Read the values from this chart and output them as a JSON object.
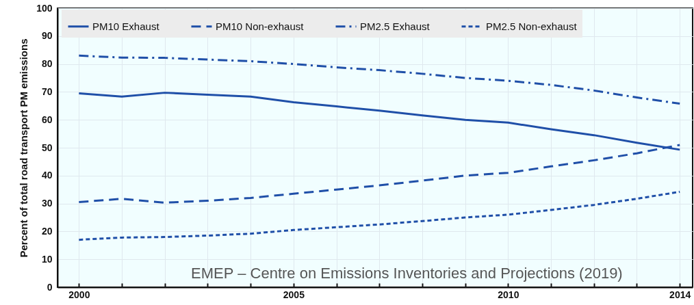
{
  "chart_data": {
    "type": "line",
    "ylabel": "Percent of total road transport PM emissions",
    "x": [
      2000,
      2001,
      2002,
      2003,
      2004,
      2005,
      2006,
      2007,
      2008,
      2009,
      2010,
      2011,
      2012,
      2013,
      2014
    ],
    "series": [
      {
        "name": "PM10 Exhaust",
        "color": "#1f4fa8",
        "line_style": "solid",
        "values": [
          69.5,
          68.3,
          69.7,
          69,
          68.3,
          66.3,
          64.8,
          63.3,
          61.6,
          60,
          59,
          56.6,
          54.5,
          51.8,
          49.3
        ]
      },
      {
        "name": "PM10 Non-exhaust",
        "color": "#1f4fa8",
        "line_style": "dashed",
        "values": [
          30.5,
          31.7,
          30.3,
          31,
          32,
          33.5,
          35,
          36.5,
          38.2,
          40,
          41,
          43.3,
          45.5,
          48,
          51
        ]
      },
      {
        "name": "PM2.5 Exhaust",
        "color": "#1f4fa8",
        "line_style": "dashdot",
        "values": [
          83,
          82.3,
          82.2,
          81.6,
          81,
          80,
          78.8,
          77.8,
          76.5,
          75,
          74,
          72.5,
          70.5,
          68,
          65.8
        ]
      },
      {
        "name": "PM2.5 Non-exhaust",
        "color": "#1f4fa8",
        "line_style": "dotted",
        "values": [
          17,
          17.8,
          18,
          18.5,
          19.2,
          20.5,
          21.5,
          22.5,
          23.7,
          25,
          26,
          27.7,
          29.5,
          31.7,
          34.2
        ]
      }
    ],
    "xlim": [
      1999.5,
      2014.3
    ],
    "xticks": [
      2000,
      {
        "value": 2001,
        "label": null
      },
      {
        "value": 2002,
        "label": null
      },
      {
        "value": 2003,
        "label": null
      },
      {
        "value": 2004,
        "label": null
      },
      2005,
      {
        "value": 2006,
        "label": null
      },
      {
        "value": 2007,
        "label": null
      },
      {
        "value": 2008,
        "label": null
      },
      {
        "value": 2009,
        "label": null
      },
      2010,
      {
        "value": 2011,
        "label": null
      },
      {
        "value": 2012,
        "label": null
      },
      {
        "value": 2013,
        "label": null
      },
      2014
    ],
    "ylim": [
      0,
      100
    ],
    "yticks": [
      0,
      10,
      20,
      30,
      40,
      50,
      60,
      70,
      80,
      90,
      100
    ],
    "grid": true,
    "legend": "top",
    "annotations": [
      "EMEP – Centre on Emissions Inventories and Projections (2019)"
    ]
  }
}
